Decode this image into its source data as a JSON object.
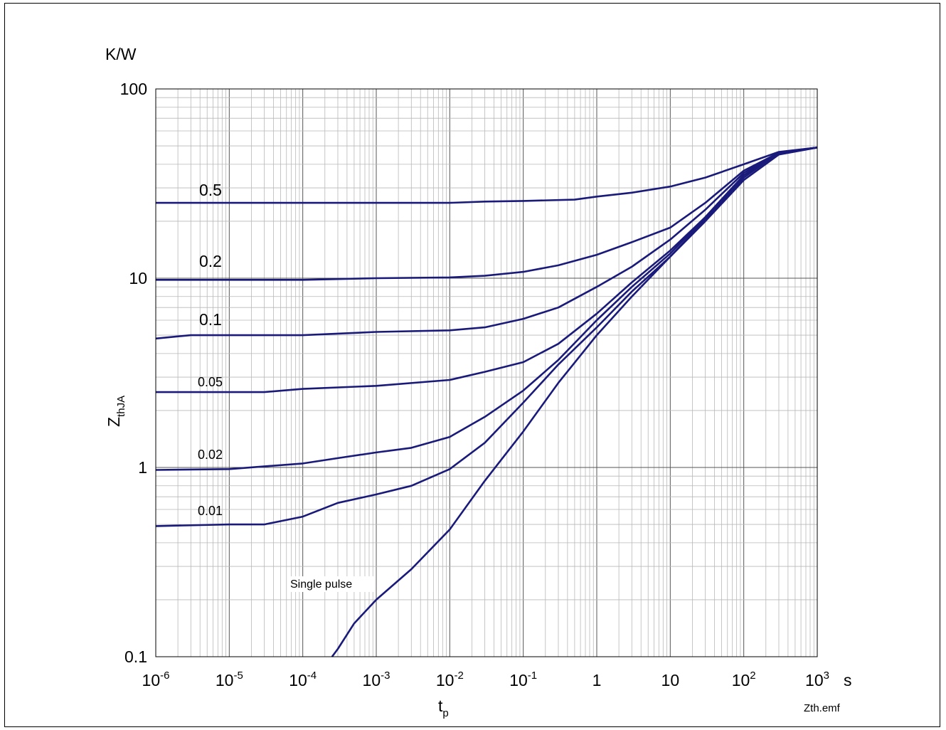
{
  "footer_label": "Zth.emf",
  "chart_data": {
    "type": "line",
    "title": "",
    "xlabel": "t",
    "xlabel_sub": "p",
    "ylabel": "Z",
    "ylabel_sub": "thJA",
    "x_unit": "s",
    "y_unit": "K/W",
    "x_scale": "log",
    "y_scale": "log",
    "xlim": [
      1e-06,
      1000
    ],
    "ylim": [
      0.1,
      100
    ],
    "grid": true,
    "x_ticks": [
      {
        "base": "10",
        "exp": "-6"
      },
      {
        "base": "10",
        "exp": "-5"
      },
      {
        "base": "10",
        "exp": "-4"
      },
      {
        "base": "10",
        "exp": "-3"
      },
      {
        "base": "10",
        "exp": "-2"
      },
      {
        "base": "10",
        "exp": "-1"
      },
      {
        "base": "1",
        "exp": ""
      },
      {
        "base": "10",
        "exp": ""
      },
      {
        "base": "10",
        "exp": "2"
      },
      {
        "base": "10",
        "exp": "3"
      }
    ],
    "y_ticks": [
      "0.1",
      "1",
      "10",
      "100"
    ],
    "line_color": "#1a1a7a",
    "series": [
      {
        "name": "0.5",
        "x": [
          1e-06,
          1e-05,
          0.0001,
          0.001,
          0.01,
          0.03,
          0.1,
          0.5,
          1,
          3,
          10,
          30,
          100,
          300,
          1000
        ],
        "y": [
          25,
          25,
          25,
          25,
          25,
          25.4,
          25.6,
          26,
          27,
          28.3,
          30.5,
          34,
          40,
          46.5,
          49
        ]
      },
      {
        "name": "0.2",
        "x": [
          1e-06,
          1e-05,
          0.0001,
          0.001,
          0.01,
          0.03,
          0.1,
          0.3,
          1,
          3,
          10,
          30,
          100,
          300,
          1000
        ],
        "y": [
          9.8,
          9.8,
          9.8,
          10,
          10.1,
          10.3,
          10.8,
          11.7,
          13.3,
          15.5,
          18.5,
          25,
          37,
          46,
          49
        ]
      },
      {
        "name": "0.1",
        "x": [
          1e-06,
          3e-06,
          1e-05,
          0.0001,
          0.001,
          0.01,
          0.03,
          0.1,
          0.3,
          1,
          3,
          10,
          30,
          100,
          300,
          1000
        ],
        "y": [
          4.8,
          5,
          5,
          5,
          5.2,
          5.3,
          5.5,
          6.1,
          7,
          9,
          11.5,
          16,
          23,
          36,
          46,
          49
        ]
      },
      {
        "name": "0.05",
        "x": [
          1e-06,
          3e-05,
          0.0001,
          0.001,
          0.01,
          0.03,
          0.1,
          0.3,
          1,
          3,
          10,
          30,
          100,
          300,
          1000
        ],
        "y": [
          2.5,
          2.5,
          2.6,
          2.7,
          2.9,
          3.2,
          3.6,
          4.5,
          6.5,
          9.5,
          14,
          21,
          35,
          46,
          49
        ]
      },
      {
        "name": "0.02",
        "x": [
          1e-06,
          1e-05,
          0.0001,
          0.0003,
          0.001,
          0.003,
          0.01,
          0.03,
          0.1,
          0.3,
          1,
          3,
          10,
          30,
          100,
          300,
          1000
        ],
        "y": [
          0.97,
          0.98,
          1.05,
          1.12,
          1.2,
          1.27,
          1.45,
          1.85,
          2.55,
          3.7,
          6,
          9,
          13.5,
          21,
          35,
          46,
          49
        ]
      },
      {
        "name": "0.01",
        "x": [
          1e-06,
          1e-05,
          3e-05,
          0.0001,
          0.0003,
          0.001,
          0.003,
          0.01,
          0.03,
          0.1,
          0.3,
          1,
          3,
          10,
          30,
          100,
          300,
          1000
        ],
        "y": [
          0.49,
          0.5,
          0.5,
          0.55,
          0.65,
          0.72,
          0.8,
          0.98,
          1.35,
          2.2,
          3.5,
          5.5,
          8.5,
          13,
          20.5,
          34,
          46,
          49
        ]
      },
      {
        "name": "Single pulse",
        "x": [
          0.00025,
          0.0003,
          0.0005,
          0.001,
          0.003,
          0.01,
          0.03,
          0.1,
          0.3,
          1,
          3,
          10,
          30,
          100,
          300,
          1000
        ],
        "y": [
          0.1,
          0.11,
          0.15,
          0.2,
          0.29,
          0.47,
          0.85,
          1.55,
          2.8,
          5,
          8,
          13,
          20,
          33,
          45,
          49
        ]
      }
    ],
    "series_labels": [
      "0.5",
      "0.2",
      "0.1",
      "0.05",
      "0.02",
      "0.01",
      "Single pulse"
    ]
  }
}
